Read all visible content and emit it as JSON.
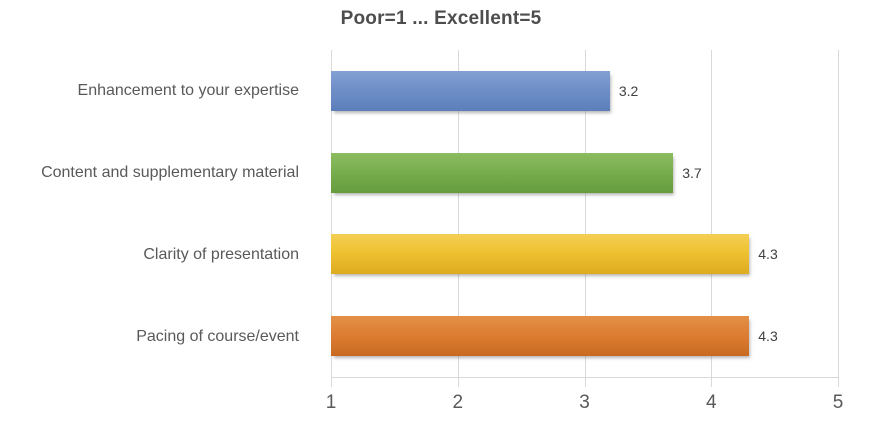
{
  "title": "Poor=1 ... Excellent=5",
  "chart_data": {
    "type": "bar",
    "orientation": "horizontal",
    "title": "Poor=1 ... Excellent=5",
    "xlim": [
      1,
      5
    ],
    "x_ticks": [
      "1",
      "2",
      "3",
      "4",
      "5"
    ],
    "grid": true,
    "gridline_color": "#d9d9d9",
    "text_color": "#595959",
    "value_label_color": "#404040",
    "categories": [
      "Enhancement to your expertise",
      "Content and supplementary material",
      "Clarity of presentation",
      "Pacing of course/event"
    ],
    "values": [
      3.2,
      3.7,
      4.3,
      4.3
    ],
    "bars": [
      {
        "label": "Enhancement to your expertise",
        "value": 3.2,
        "display": "3.2",
        "color": "#6f8fc9",
        "color_light": "#84a0d3",
        "color_dark": "#5c7fb9"
      },
      {
        "label": "Content and supplementary material",
        "value": 3.7,
        "display": "3.7",
        "color": "#79ae4e",
        "color_light": "#8cbd61",
        "color_dark": "#659c3d"
      },
      {
        "label": "Clarity of presentation",
        "value": 4.3,
        "display": "4.3",
        "color": "#efc231",
        "color_light": "#f4cf54",
        "color_dark": "#ddab20"
      },
      {
        "label": "Pacing of course/event",
        "value": 4.3,
        "display": "4.3",
        "color": "#dd7e32",
        "color_light": "#e39049",
        "color_dark": "#c96a23"
      }
    ]
  }
}
